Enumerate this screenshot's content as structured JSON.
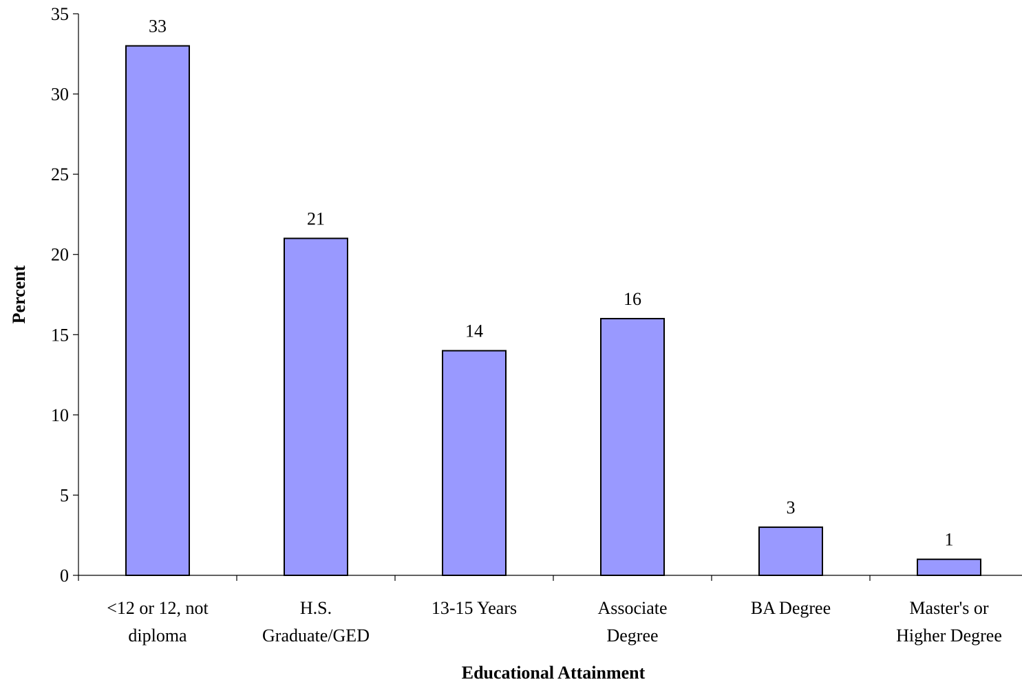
{
  "chart_data": {
    "type": "bar",
    "categories": [
      [
        "<12 or 12, not",
        "diploma"
      ],
      [
        "H.S.",
        "Graduate/GED"
      ],
      [
        "13-15 Years"
      ],
      [
        "Associate",
        "Degree"
      ],
      [
        "BA Degree"
      ],
      [
        "Master's or",
        "Higher Degree"
      ]
    ],
    "values": [
      33,
      21,
      14,
      16,
      3,
      1
    ],
    "data_labels": [
      "33",
      "21",
      "14",
      "16",
      "3",
      "1"
    ],
    "xlabel": "Educational Attainment",
    "ylabel": "Percent",
    "ylim": [
      0,
      35
    ],
    "yticks": [
      0,
      5,
      10,
      15,
      20,
      25,
      30,
      35
    ],
    "grid": false,
    "bar_color": "#9999ff"
  }
}
